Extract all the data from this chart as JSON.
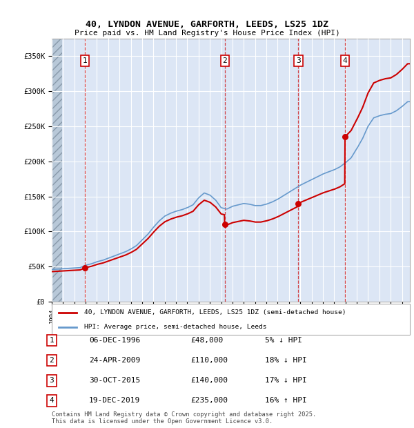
{
  "title1": "40, LYNDON AVENUE, GARFORTH, LEEDS, LS25 1DZ",
  "title2": "Price paid vs. HM Land Registry's House Price Index (HPI)",
  "ylabel_ticks": [
    "£0",
    "£50K",
    "£100K",
    "£150K",
    "£200K",
    "£250K",
    "£300K",
    "£350K"
  ],
  "ytick_vals": [
    0,
    50000,
    100000,
    150000,
    200000,
    250000,
    300000,
    350000
  ],
  "ylim": [
    0,
    375000
  ],
  "xlim_start": 1994.0,
  "xlim_end": 2025.7,
  "sale_dates": [
    1996.92,
    2009.31,
    2015.83,
    2019.96
  ],
  "sale_prices": [
    48000,
    110000,
    140000,
    235000
  ],
  "sale_labels": [
    "1",
    "2",
    "3",
    "4"
  ],
  "legend_label_red": "40, LYNDON AVENUE, GARFORTH, LEEDS, LS25 1DZ (semi-detached house)",
  "legend_label_blue": "HPI: Average price, semi-detached house, Leeds",
  "table_rows": [
    [
      "1",
      "06-DEC-1996",
      "£48,000",
      "5% ↓ HPI"
    ],
    [
      "2",
      "24-APR-2009",
      "£110,000",
      "18% ↓ HPI"
    ],
    [
      "3",
      "30-OCT-2015",
      "£140,000",
      "17% ↓ HPI"
    ],
    [
      "4",
      "19-DEC-2019",
      "£235,000",
      "16% ↑ HPI"
    ]
  ],
  "footer": "Contains HM Land Registry data © Crown copyright and database right 2025.\nThis data is licensed under the Open Government Licence v3.0.",
  "plot_bg_color": "#dce6f5",
  "hatch_color": "#b8c8d8",
  "red_color": "#cc0000",
  "blue_color": "#6699cc",
  "grid_color": "#ffffff"
}
